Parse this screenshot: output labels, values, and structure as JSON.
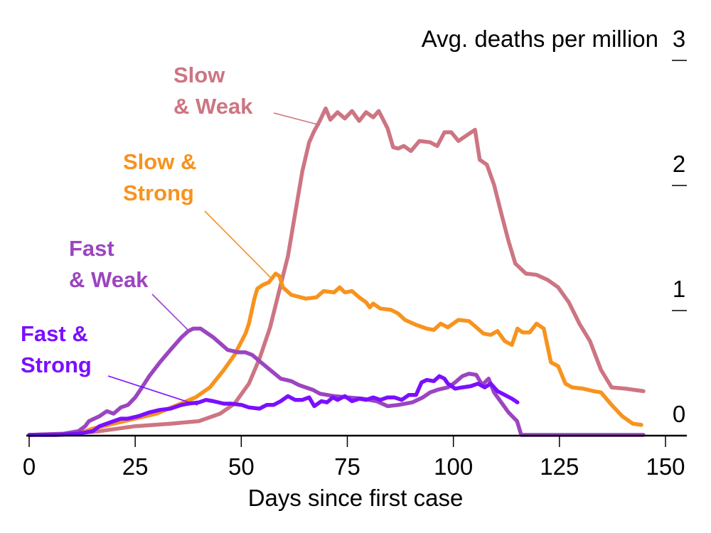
{
  "chart_data": {
    "type": "line",
    "title": "",
    "xlabel": "Days since first case",
    "ylabel": "Avg. deaths per million",
    "xlim": [
      0,
      150
    ],
    "ylim": [
      0,
      3
    ],
    "x_ticks": [
      0,
      25,
      50,
      75,
      100,
      125,
      150
    ],
    "x_tick_labels": [
      "0",
      "25",
      "50",
      "75",
      "100",
      "125",
      "150"
    ],
    "y_ticks": [
      0,
      1,
      2,
      3
    ],
    "y_tick_labels": [
      "0",
      "1",
      "2",
      "3"
    ],
    "y_axis_side": "right",
    "grid": false,
    "legend": "direct labels with leader lines",
    "series": [
      {
        "name": "Slow & Weak",
        "label_lines": [
          "Slow",
          "& Weak"
        ],
        "color": "#cd7582",
        "points": [
          [
            0,
            0
          ],
          [
            10,
            0.01
          ],
          [
            16.6,
            0.03
          ],
          [
            25,
            0.07
          ],
          [
            33.3,
            0.09
          ],
          [
            40,
            0.11
          ],
          [
            45,
            0.17
          ],
          [
            48.4,
            0.25
          ],
          [
            51.8,
            0.41
          ],
          [
            54.3,
            0.61
          ],
          [
            56.8,
            0.86
          ],
          [
            59.3,
            1.2
          ],
          [
            61,
            1.43
          ],
          [
            62.7,
            1.77
          ],
          [
            64.4,
            2.11
          ],
          [
            66,
            2.34
          ],
          [
            67.2,
            2.43
          ],
          [
            68.5,
            2.51
          ],
          [
            69.9,
            2.61
          ],
          [
            71,
            2.52
          ],
          [
            72.7,
            2.58
          ],
          [
            74.4,
            2.53
          ],
          [
            76.1,
            2.59
          ],
          [
            77.8,
            2.51
          ],
          [
            79.4,
            2.58
          ],
          [
            81.1,
            2.54
          ],
          [
            82.4,
            2.59
          ],
          [
            84.5,
            2.45
          ],
          [
            85.8,
            2.3
          ],
          [
            87,
            2.29
          ],
          [
            88.3,
            2.31
          ],
          [
            90,
            2.27
          ],
          [
            92,
            2.35
          ],
          [
            94.5,
            2.34
          ],
          [
            96.2,
            2.31
          ],
          [
            97.9,
            2.42
          ],
          [
            99.5,
            2.42
          ],
          [
            101.2,
            2.35
          ],
          [
            102.9,
            2.39
          ],
          [
            105.1,
            2.44
          ],
          [
            106.2,
            2.2
          ],
          [
            107.9,
            2.16
          ],
          [
            109.6,
            2.0
          ],
          [
            111.3,
            1.77
          ],
          [
            113,
            1.55
          ],
          [
            114.6,
            1.37
          ],
          [
            117.1,
            1.29
          ],
          [
            119.6,
            1.28
          ],
          [
            122.2,
            1.24
          ],
          [
            124.7,
            1.18
          ],
          [
            127.2,
            1.06
          ],
          [
            129.7,
            0.89
          ],
          [
            132.2,
            0.75
          ],
          [
            134.8,
            0.52
          ],
          [
            137.3,
            0.38
          ],
          [
            140.6,
            0.37
          ],
          [
            144.8,
            0.35
          ]
        ]
      },
      {
        "name": "Slow & Strong",
        "label_lines": [
          "Slow &",
          "Strong"
        ],
        "color": "#f7931e",
        "points": [
          [
            0,
            0
          ],
          [
            11.6,
            0.01
          ],
          [
            14.9,
            0.05
          ],
          [
            19.9,
            0.09
          ],
          [
            25,
            0.13
          ],
          [
            30,
            0.17
          ],
          [
            35,
            0.24
          ],
          [
            39.2,
            0.3
          ],
          [
            42.6,
            0.38
          ],
          [
            45.9,
            0.52
          ],
          [
            48.4,
            0.64
          ],
          [
            51,
            0.81
          ],
          [
            51.8,
            0.89
          ],
          [
            53.1,
            1.09
          ],
          [
            53.8,
            1.17
          ],
          [
            55.1,
            1.2
          ],
          [
            56.5,
            1.22
          ],
          [
            58.1,
            1.29
          ],
          [
            59,
            1.27
          ],
          [
            59.8,
            1.18
          ],
          [
            61.8,
            1.12
          ],
          [
            65.2,
            1.09
          ],
          [
            67.7,
            1.1
          ],
          [
            69.4,
            1.15
          ],
          [
            71.9,
            1.14
          ],
          [
            73.2,
            1.18
          ],
          [
            74.4,
            1.14
          ],
          [
            76.1,
            1.15
          ],
          [
            77.8,
            1.1
          ],
          [
            79.4,
            1.06
          ],
          [
            80.3,
            1.02
          ],
          [
            81.1,
            1.05
          ],
          [
            82.8,
            1.01
          ],
          [
            85.3,
            1.0
          ],
          [
            87,
            0.97
          ],
          [
            88.6,
            0.92
          ],
          [
            91.2,
            0.88
          ],
          [
            93.7,
            0.85
          ],
          [
            95.4,
            0.84
          ],
          [
            97,
            0.89
          ],
          [
            98.7,
            0.86
          ],
          [
            101.2,
            0.92
          ],
          [
            103.7,
            0.91
          ],
          [
            105.4,
            0.86
          ],
          [
            107.1,
            0.81
          ],
          [
            108.8,
            0.8
          ],
          [
            110.4,
            0.83
          ],
          [
            112.1,
            0.75
          ],
          [
            113.8,
            0.72
          ],
          [
            115.1,
            0.85
          ],
          [
            116.3,
            0.82
          ],
          [
            118,
            0.82
          ],
          [
            119.6,
            0.89
          ],
          [
            121.3,
            0.85
          ],
          [
            123,
            0.58
          ],
          [
            124.7,
            0.55
          ],
          [
            126.4,
            0.41
          ],
          [
            128,
            0.38
          ],
          [
            130.6,
            0.37
          ],
          [
            133.1,
            0.35
          ],
          [
            134.8,
            0.34
          ],
          [
            137.3,
            0.24
          ],
          [
            139.8,
            0.15
          ],
          [
            142.3,
            0.09
          ],
          [
            144.3,
            0.08
          ]
        ]
      },
      {
        "name": "Fast & Weak",
        "label_lines": [
          "Fast",
          "& Weak"
        ],
        "color": "#9b45c0",
        "points": [
          [
            0,
            0
          ],
          [
            8.2,
            0.01
          ],
          [
            11.6,
            0.03
          ],
          [
            13.2,
            0.07
          ],
          [
            14.1,
            0.11
          ],
          [
            16.6,
            0.15
          ],
          [
            18.3,
            0.19
          ],
          [
            19.9,
            0.17
          ],
          [
            21.6,
            0.22
          ],
          [
            23.3,
            0.24
          ],
          [
            25,
            0.3
          ],
          [
            26.6,
            0.38
          ],
          [
            28.3,
            0.47
          ],
          [
            30.8,
            0.58
          ],
          [
            33.3,
            0.68
          ],
          [
            35.9,
            0.78
          ],
          [
            37.5,
            0.83
          ],
          [
            38.7,
            0.85
          ],
          [
            40.4,
            0.85
          ],
          [
            41.7,
            0.82
          ],
          [
            43.4,
            0.78
          ],
          [
            45.1,
            0.73
          ],
          [
            46.8,
            0.68
          ],
          [
            49.3,
            0.66
          ],
          [
            51,
            0.66
          ],
          [
            52.6,
            0.64
          ],
          [
            54.3,
            0.59
          ],
          [
            56.8,
            0.52
          ],
          [
            59.3,
            0.45
          ],
          [
            61.8,
            0.43
          ],
          [
            63.5,
            0.4
          ],
          [
            65.2,
            0.38
          ],
          [
            66.9,
            0.36
          ],
          [
            68.5,
            0.33
          ],
          [
            71.9,
            0.31
          ],
          [
            75.2,
            0.3
          ],
          [
            78.6,
            0.29
          ],
          [
            81.9,
            0.27
          ],
          [
            84.5,
            0.23
          ],
          [
            87,
            0.24
          ],
          [
            90.3,
            0.26
          ],
          [
            92.8,
            0.3
          ],
          [
            94.5,
            0.34
          ],
          [
            96.2,
            0.36
          ],
          [
            98.7,
            0.38
          ],
          [
            100.4,
            0.42
          ],
          [
            102.1,
            0.47
          ],
          [
            103.7,
            0.49
          ],
          [
            105.4,
            0.48
          ],
          [
            106.8,
            0.4
          ],
          [
            108.3,
            0.45
          ],
          [
            109.6,
            0.34
          ],
          [
            111.3,
            0.26
          ],
          [
            113,
            0.18
          ],
          [
            115,
            0.11
          ],
          [
            116,
            0
          ],
          [
            123,
            0
          ],
          [
            144.8,
            0
          ]
        ]
      },
      {
        "name": "Fast & Strong",
        "label_lines": [
          "Fast &",
          "Strong"
        ],
        "color": "#7a0fff",
        "points": [
          [
            0,
            0
          ],
          [
            6.5,
            0
          ],
          [
            11.6,
            0.01
          ],
          [
            15,
            0.03
          ],
          [
            16.6,
            0.07
          ],
          [
            19.1,
            0.1
          ],
          [
            21.6,
            0.13
          ],
          [
            23.3,
            0.13
          ],
          [
            25.8,
            0.15
          ],
          [
            28.3,
            0.18
          ],
          [
            30.8,
            0.2
          ],
          [
            33.3,
            0.21
          ],
          [
            35.9,
            0.24
          ],
          [
            37.5,
            0.25
          ],
          [
            40,
            0.26
          ],
          [
            41.7,
            0.28
          ],
          [
            43.4,
            0.27
          ],
          [
            45.9,
            0.25
          ],
          [
            47.6,
            0.25
          ],
          [
            50.1,
            0.24
          ],
          [
            51.8,
            0.22
          ],
          [
            54.3,
            0.21
          ],
          [
            56,
            0.24
          ],
          [
            57.6,
            0.24
          ],
          [
            59.3,
            0.27
          ],
          [
            61,
            0.31
          ],
          [
            62.7,
            0.28
          ],
          [
            64.4,
            0.28
          ],
          [
            66,
            0.3
          ],
          [
            67.2,
            0.23
          ],
          [
            68.9,
            0.27
          ],
          [
            70.2,
            0.26
          ],
          [
            71.6,
            0.3
          ],
          [
            72.7,
            0.28
          ],
          [
            74.4,
            0.31
          ],
          [
            76.1,
            0.27
          ],
          [
            77.8,
            0.29
          ],
          [
            79.4,
            0.28
          ],
          [
            81.1,
            0.3
          ],
          [
            82.8,
            0.28
          ],
          [
            84.5,
            0.3
          ],
          [
            86.1,
            0.3
          ],
          [
            87.8,
            0.28
          ],
          [
            89.5,
            0.32
          ],
          [
            91.2,
            0.32
          ],
          [
            92.5,
            0.42
          ],
          [
            93.7,
            0.44
          ],
          [
            95.4,
            0.43
          ],
          [
            96.7,
            0.47
          ],
          [
            97.9,
            0.45
          ],
          [
            98.7,
            0.41
          ],
          [
            100.4,
            0.37
          ],
          [
            102.1,
            0.38
          ],
          [
            104.1,
            0.39
          ],
          [
            105.8,
            0.41
          ],
          [
            107.4,
            0.38
          ],
          [
            108.8,
            0.41
          ],
          [
            110.4,
            0.35
          ],
          [
            112.1,
            0.32
          ],
          [
            113.8,
            0.29
          ],
          [
            115.1,
            0.26
          ]
        ]
      }
    ],
    "annotations": [
      {
        "series": "Slow & Weak",
        "points_to": [
          68.5,
          2.51
        ]
      },
      {
        "series": "Slow & Strong",
        "points_to": [
          57,
          1.24
        ]
      },
      {
        "series": "Fast & Weak",
        "points_to": [
          38,
          0.83
        ]
      },
      {
        "series": "Fast & Strong",
        "points_to": [
          40,
          0.27
        ]
      }
    ]
  }
}
